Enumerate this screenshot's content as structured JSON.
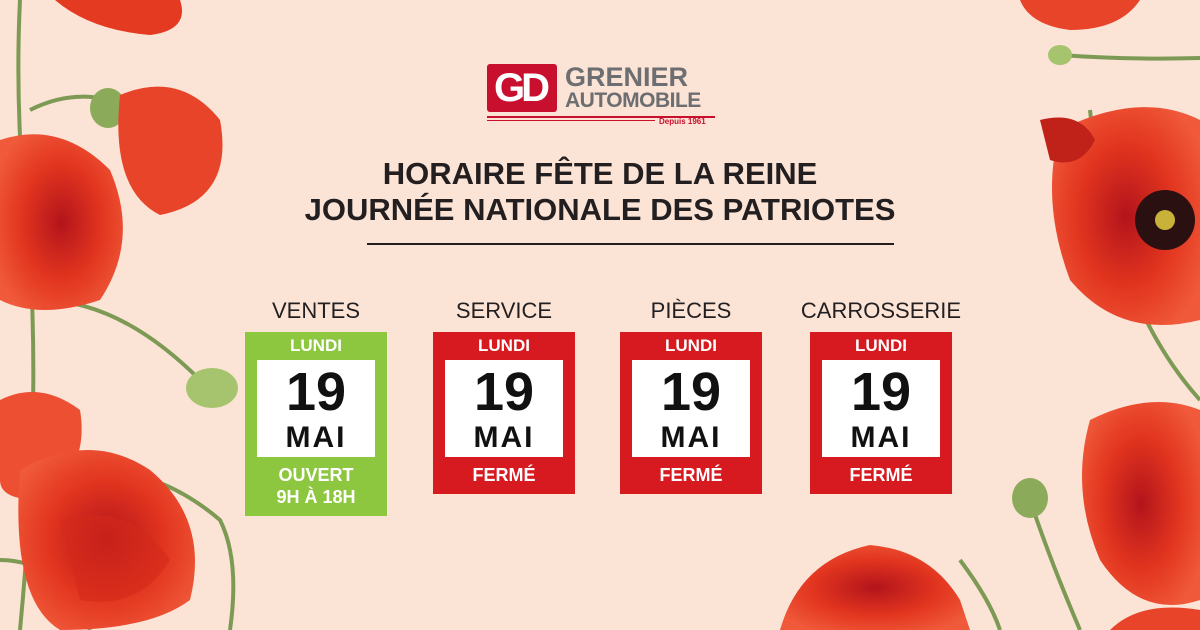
{
  "logo": {
    "mark": "GD",
    "name_line1": "GRENIER",
    "name_line2": "AUTOMOBILE",
    "since": "Depuis 1961"
  },
  "heading": {
    "line1": "HORAIRE FÊTE DE LA REINE",
    "line2": "JOURNÉE NATIONALE DES PATRIOTES"
  },
  "departments": [
    {
      "label": "VENTES",
      "day": "LUNDI",
      "date": "19",
      "month": "MAI",
      "status": "OUVERT",
      "hours": "9H À 18H"
    },
    {
      "label": "SERVICE",
      "day": "LUNDI",
      "date": "19",
      "month": "MAI",
      "status": "FERMÉ"
    },
    {
      "label": "PIÈCES",
      "day": "LUNDI",
      "date": "19",
      "month": "MAI",
      "status": "FERMÉ"
    },
    {
      "label": "CARROSSERIE",
      "day": "LUNDI",
      "date": "19",
      "month": "MAI",
      "status": "FERMÉ"
    }
  ],
  "colors": {
    "background": "#fbe3d6",
    "open": "#8dc63f",
    "closed": "#d71920",
    "brand": "#c8102e",
    "text": "#231f20"
  }
}
